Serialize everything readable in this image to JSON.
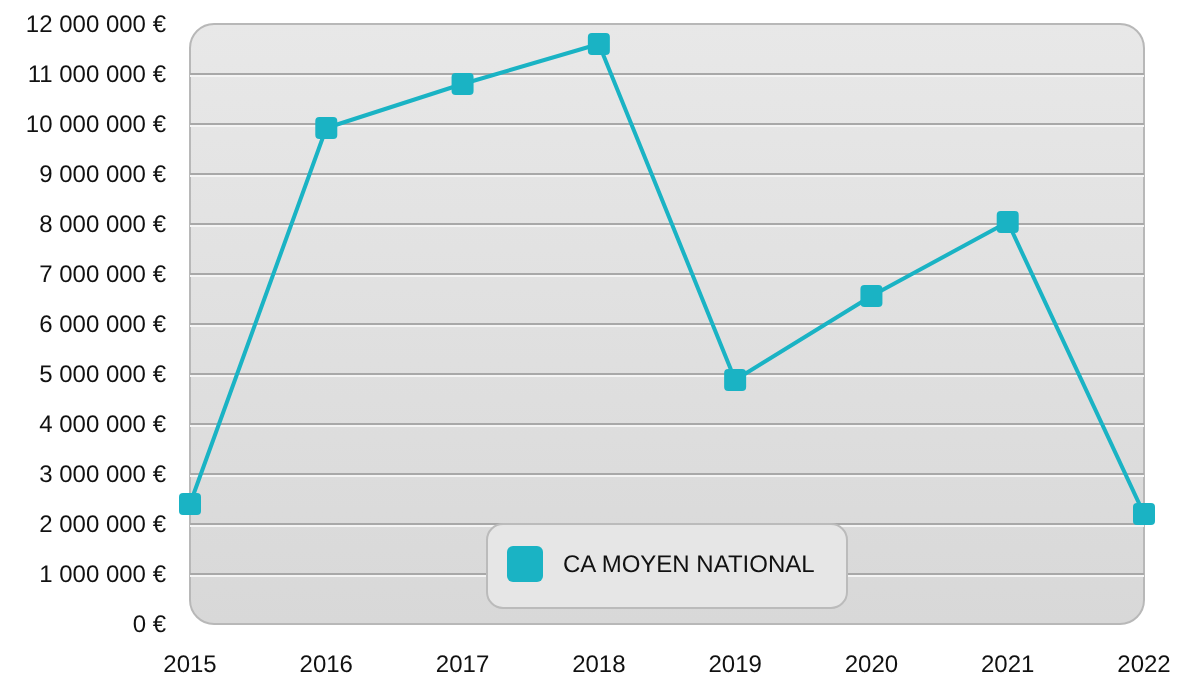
{
  "chart_data": {
    "type": "line",
    "categories": [
      "2015",
      "2016",
      "2017",
      "2018",
      "2019",
      "2020",
      "2021",
      "2022"
    ],
    "series": [
      {
        "name": "CA MOYEN NATIONAL",
        "color": "#1ab3c4",
        "values": [
          2400000,
          9920000,
          10800000,
          11600000,
          4880000,
          6560000,
          8040000,
          2200000
        ]
      }
    ],
    "ylim": [
      0,
      12000000
    ],
    "yticks": [
      {
        "value": 0,
        "label": "0 €"
      },
      {
        "value": 1000000,
        "label": "1 000 000 €"
      },
      {
        "value": 2000000,
        "label": "2 000 000 €"
      },
      {
        "value": 3000000,
        "label": "3 000 000 €"
      },
      {
        "value": 4000000,
        "label": "4 000 000 €"
      },
      {
        "value": 5000000,
        "label": "5 000 000 €"
      },
      {
        "value": 6000000,
        "label": "6 000 000 €"
      },
      {
        "value": 7000000,
        "label": "7 000 000 €"
      },
      {
        "value": 8000000,
        "label": "8 000 000 €"
      },
      {
        "value": 9000000,
        "label": "9 000 000 €"
      },
      {
        "value": 10000000,
        "label": "10 000 000 €"
      },
      {
        "value": 11000000,
        "label": "11 000 000 €"
      },
      {
        "value": 12000000,
        "label": "12 000 000 €"
      }
    ],
    "grid": "y",
    "legend": "bottom",
    "marker": "square",
    "line_style": "solid"
  }
}
